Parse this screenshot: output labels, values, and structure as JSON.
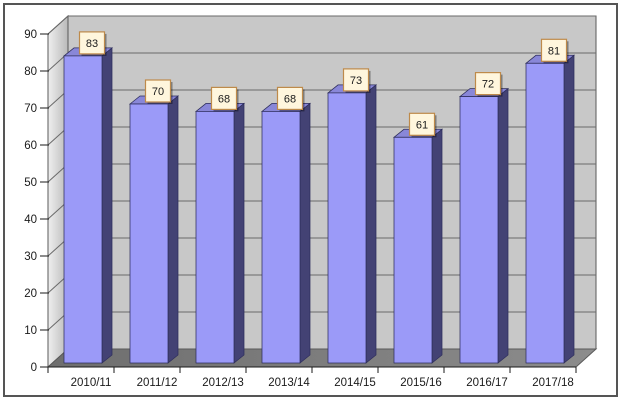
{
  "chart_data": {
    "type": "bar",
    "style": "3d-column",
    "title": "",
    "xlabel": "",
    "ylabel": "",
    "categories": [
      "2010/11",
      "2011/12",
      "2012/13",
      "2013/14",
      "2014/15",
      "2015/16",
      "2016/17",
      "2017/18"
    ],
    "values": [
      83,
      70,
      68,
      68,
      73,
      61,
      72,
      81
    ],
    "yticks": [
      0,
      10,
      20,
      30,
      40,
      50,
      60,
      70,
      80,
      90
    ],
    "ylim": [
      0,
      90
    ],
    "ytick_step": 10,
    "grid": true,
    "legend": false,
    "data_labels_visible": true,
    "colors": {
      "bar_front": "#9B9AF8",
      "bar_top": "#8987D8",
      "bar_side": "#434274",
      "bar_outline": "#2E2E5C",
      "back_wall": "#C8C8C8",
      "left_wall_light": "#EFEFEF",
      "left_wall_dark": "#B9B9B9",
      "floor_dark": "#6E6E6E",
      "floor_light": "#8C8C8C",
      "gridline": "#6A6A6A",
      "wall_outline": "#5A5A5A",
      "label_box_bg": "#FFF6DD",
      "label_box_border": "#BE8A4A",
      "label_box_shadow": "rgba(0,0,0,0.38)",
      "axis_text": "#1A1A1A",
      "frame_border": "#555555",
      "background": "#FFFFFF"
    }
  }
}
